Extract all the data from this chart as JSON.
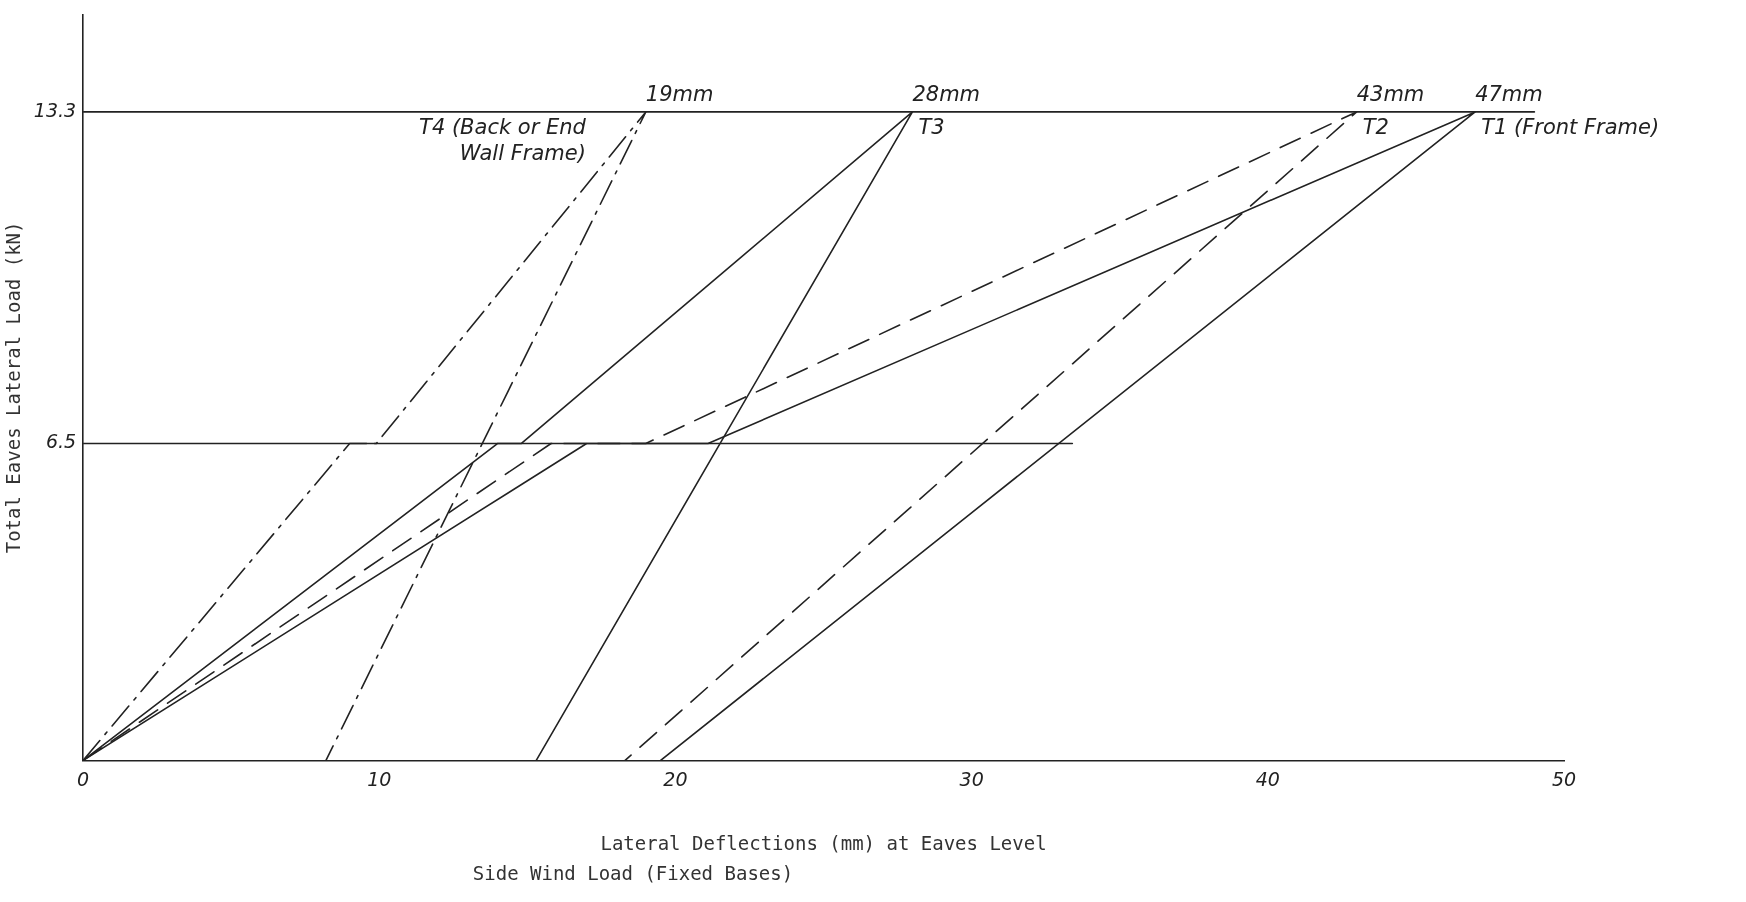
{
  "chart_data": {
    "type": "line",
    "xlabel": "Lateral Deflections (mm) at Eaves Level",
    "ylabel": "Total Eaves Lateral Load (kN)",
    "xlim": [
      0,
      50
    ],
    "xticks": [
      0,
      10,
      20,
      30,
      40,
      50
    ],
    "ylim": [
      0,
      15.3
    ],
    "yticks": [
      6.5,
      13.3
    ],
    "grid": false,
    "legend": false,
    "marker": "none",
    "series": [
      {
        "color": "#222222",
        "line_style": "solid",
        "x": [
          0,
          49
        ],
        "values": [
          13.3,
          13.3
        ]
      },
      {
        "color": "#222222",
        "line_style": "solid",
        "x": [
          0,
          33.4
        ],
        "values": [
          6.5,
          6.5
        ]
      },
      {
        "name": "T4 (Back or End Wall Frame)",
        "color": "#222222",
        "line_style": "dashdot",
        "x": [
          0,
          9.0,
          9.9,
          19,
          8.2
        ],
        "values": [
          0,
          6.5,
          6.5,
          13.3,
          0
        ]
      },
      {
        "name": "T3",
        "color": "#222222",
        "line_style": "solid",
        "x": [
          0,
          14.0,
          14.8,
          28,
          15.3
        ],
        "values": [
          0,
          6.5,
          6.5,
          13.3,
          0
        ]
      },
      {
        "name": "T2",
        "color": "#222222",
        "line_style": "dashed",
        "x": [
          0,
          15.8,
          19.0,
          43,
          18.3
        ],
        "values": [
          0,
          6.5,
          6.5,
          13.3,
          0
        ]
      },
      {
        "name": "T1 (Front Frame)",
        "color": "#222222",
        "line_style": "solid",
        "x": [
          0,
          17.0,
          21.1,
          47,
          19.5
        ],
        "values": [
          0,
          6.5,
          6.5,
          13.3,
          0
        ]
      }
    ],
    "annotations": [
      {
        "text": "19mm",
        "x": 19,
        "y": 13.3
      },
      {
        "text": "28mm",
        "x": 28,
        "y": 13.3
      },
      {
        "text": "43mm",
        "x": 43,
        "y": 13.3
      },
      {
        "text": "47mm",
        "x": 47,
        "y": 13.3
      },
      "Side Wind Load (Fixed Bases)"
    ]
  }
}
